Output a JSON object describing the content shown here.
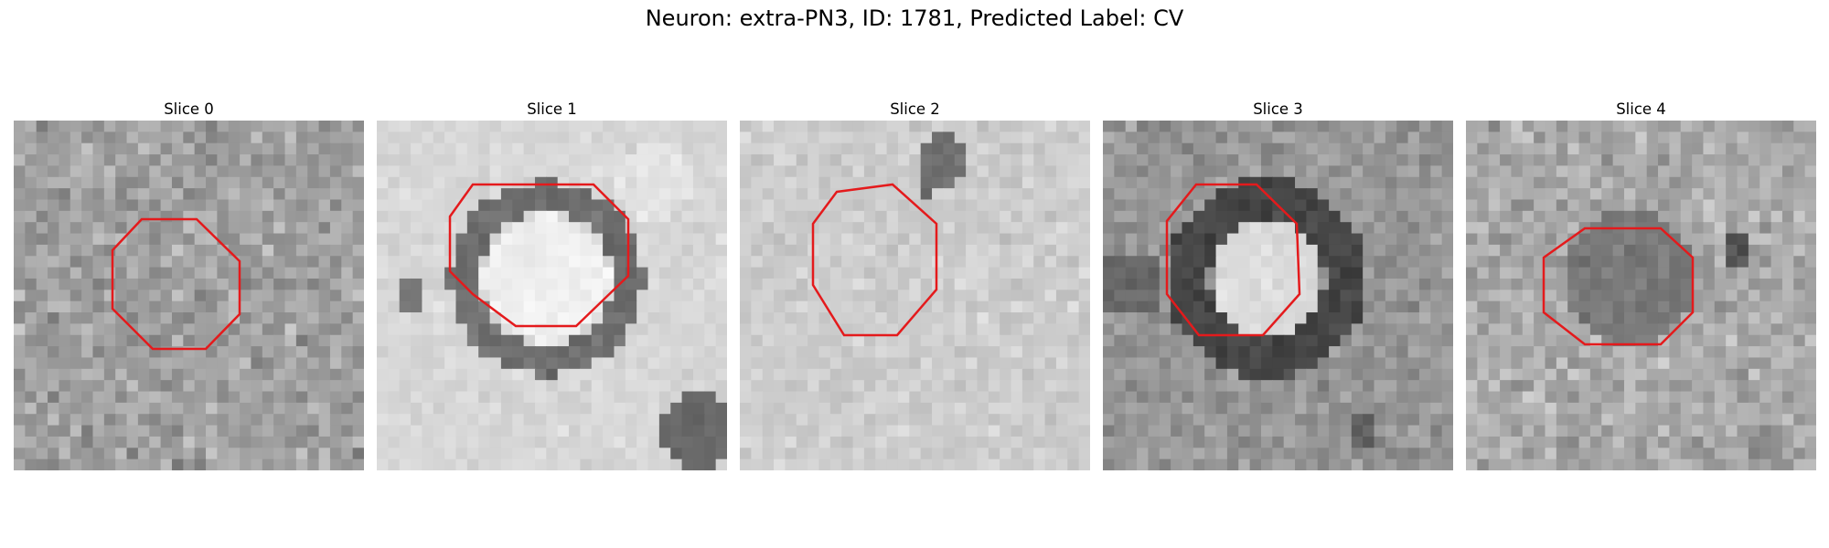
{
  "figure": {
    "title": "Neuron: extra-PN3, ID: 1781, Predicted Label: CV"
  },
  "panels": [
    {
      "title": "Slice 0"
    },
    {
      "title": "Slice 1"
    },
    {
      "title": "Slice 2"
    },
    {
      "title": "Slice 3"
    },
    {
      "title": "Slice 4"
    }
  ],
  "colors": {
    "contour": "#e41a1c",
    "background": "#ffffff"
  }
}
